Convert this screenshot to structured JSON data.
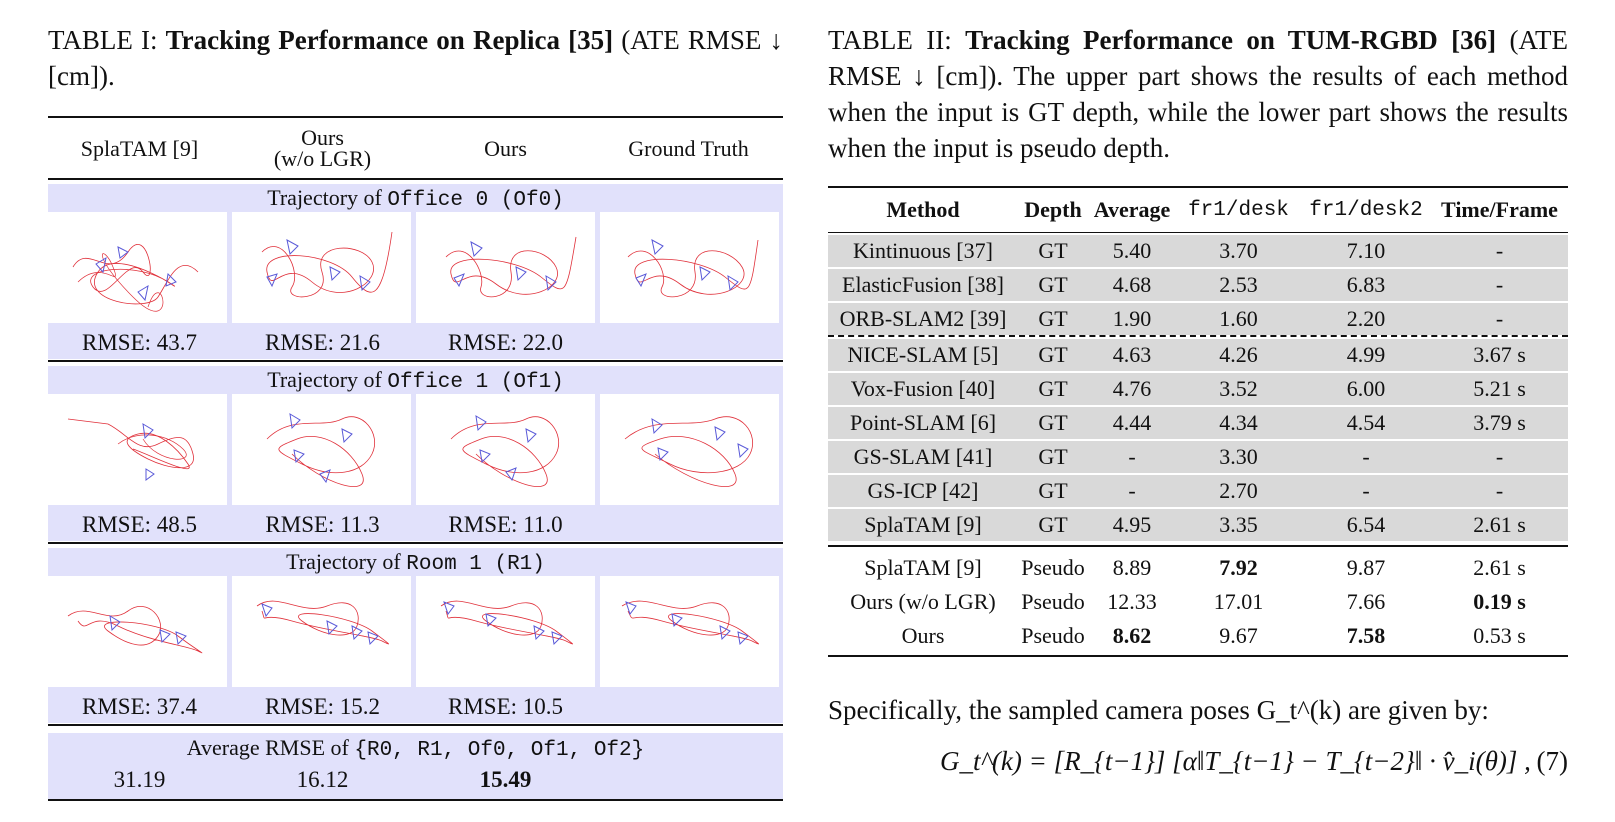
{
  "table1": {
    "caption_prefix": "TABLE I:",
    "caption_bold": "Tracking Performance on Replica [35]",
    "caption_rest": "(ATE RMSE ↓ [cm]).",
    "columns": [
      {
        "line1": "SplaTAM [9]",
        "line2": ""
      },
      {
        "line1": "Ours",
        "line2": "(w/o LGR)"
      },
      {
        "line1": "Ours",
        "line2": ""
      },
      {
        "line1": "Ground Truth",
        "line2": ""
      }
    ],
    "sections": [
      {
        "title": "Trajectory of",
        "scene": "Office 0 (Of0)",
        "rmse": [
          "RMSE: 43.7",
          "RMSE: 21.6",
          "RMSE: 22.0",
          ""
        ]
      },
      {
        "title": "Trajectory of",
        "scene": "Office 1 (Of1)",
        "rmse": [
          "RMSE: 48.5",
          "RMSE: 11.3",
          "RMSE: 11.0",
          ""
        ]
      },
      {
        "title": "Trajectory of",
        "scene": "Room 1 (R1)",
        "rmse": [
          "RMSE: 37.4",
          "RMSE: 15.2",
          "RMSE: 10.5",
          ""
        ]
      }
    ],
    "average": {
      "title": "Average RMSE of",
      "set": "{R0, R1, Of0, Of1, Of2}",
      "values": [
        "31.19",
        "16.12",
        "15.49",
        ""
      ]
    }
  },
  "table2": {
    "caption_prefix": "TABLE II:",
    "caption_bold": "Tracking Performance on TUM-RGBD [36]",
    "caption_rest": "(ATE RMSE ↓ [cm]). The upper part shows the results of each method when the input is GT depth, while the lower part shows the results when the input is pseudo depth.",
    "headers": [
      "Method",
      "Depth",
      "Average",
      "fr1/desk",
      "fr1/desk2",
      "Time/Frame"
    ],
    "gt_rows_top": [
      [
        "Kintinuous [37]",
        "GT",
        "5.40",
        "3.70",
        "7.10",
        "-"
      ],
      [
        "ElasticFusion [38]",
        "GT",
        "4.68",
        "2.53",
        "6.83",
        "-"
      ],
      [
        "ORB-SLAM2 [39]",
        "GT",
        "1.90",
        "1.60",
        "2.20",
        "-"
      ]
    ],
    "gt_rows_bottom": [
      [
        "NICE-SLAM [5]",
        "GT",
        "4.63",
        "4.26",
        "4.99",
        "3.67 s"
      ],
      [
        "Vox-Fusion [40]",
        "GT",
        "4.76",
        "3.52",
        "6.00",
        "5.21 s"
      ],
      [
        "Point-SLAM [6]",
        "GT",
        "4.44",
        "4.34",
        "4.54",
        "3.79 s"
      ],
      [
        "GS-SLAM [41]",
        "GT",
        "-",
        "3.30",
        "-",
        "-"
      ],
      [
        "GS-ICP [42]",
        "GT",
        "-",
        "2.70",
        "-",
        "-"
      ],
      [
        "SplaTAM [9]",
        "GT",
        "4.95",
        "3.35",
        "6.54",
        "2.61 s"
      ]
    ],
    "pseudo_rows": [
      [
        "SplaTAM [9]",
        "Pseudo",
        "8.89",
        "7.92",
        "9.87",
        "2.61 s"
      ],
      [
        "Ours (w/o LGR)",
        "Pseudo",
        "12.33",
        "17.01",
        "7.66",
        "0.19 s"
      ],
      [
        "Ours",
        "Pseudo",
        "8.62",
        "9.67",
        "7.58",
        "0.53 s"
      ]
    ]
  },
  "paragraph": "Specifically, the sampled camera poses G_t^(k) are given by:",
  "equation": "G_t^(k) = [R_{t−1}] [α‖T_{t−1} − T_{t−2}‖ · v̂_i(θ)] ,",
  "equation_number": "(7)",
  "colors": {
    "section_bg": "#e1e1fb",
    "gt_row_bg": "#d9d9d9",
    "trajectory_red": "#e0303a",
    "camera_blue": "#5a5ad8"
  }
}
